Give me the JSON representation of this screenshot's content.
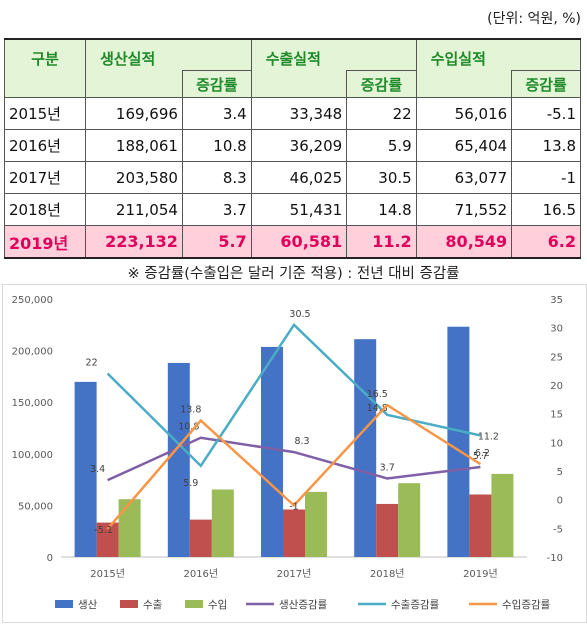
{
  "unit_note": "(단위: 억원, %)",
  "table": {
    "header_group": "구분",
    "headers": [
      "생산실적",
      "수출실적",
      "수입실적"
    ],
    "sub_header": "증감률",
    "rows": [
      {
        "year": "2015년",
        "cells": [
          "169,696",
          "3.4",
          "33,348",
          "22",
          "56,016",
          "-5.1"
        ]
      },
      {
        "year": "2016년",
        "cells": [
          "188,061",
          "10.8",
          "36,209",
          "5.9",
          "65,404",
          "13.8"
        ]
      },
      {
        "year": "2017년",
        "cells": [
          "203,580",
          "8.3",
          "46,025",
          "30.5",
          "63,077",
          "-1"
        ]
      },
      {
        "year": "2018년",
        "cells": [
          "211,054",
          "3.7",
          "51,431",
          "14.8",
          "71,552",
          "16.5"
        ]
      },
      {
        "year": "2019년",
        "cells": [
          "223,132",
          "5.7",
          "60,581",
          "11.2",
          "80,549",
          "6.2"
        ]
      }
    ]
  },
  "footnote": "※ 증감률(수출입은 달러 기준 적용) : 전년 대비 증감률",
  "chart_data": {
    "type": "bar",
    "categories": [
      "2015년",
      "2016년",
      "2017년",
      "2018년",
      "2019년"
    ],
    "series": [
      {
        "name": "생산",
        "type": "bar",
        "axis": "left",
        "color": "#4472c4",
        "values": [
          169696,
          188061,
          203580,
          211054,
          223132
        ]
      },
      {
        "name": "수출",
        "type": "bar",
        "axis": "left",
        "color": "#c0504d",
        "values": [
          33348,
          36209,
          46025,
          51431,
          60581
        ]
      },
      {
        "name": "수입",
        "type": "bar",
        "axis": "left",
        "color": "#9bbb59",
        "values": [
          56016,
          65404,
          63077,
          71552,
          80549
        ]
      },
      {
        "name": "생산증감률",
        "type": "line",
        "axis": "right",
        "color": "#7f5fa8",
        "values": [
          3.4,
          10.8,
          8.3,
          3.7,
          5.7
        ]
      },
      {
        "name": "수출증감률",
        "type": "line",
        "axis": "right",
        "color": "#4bacc6",
        "values": [
          22,
          5.9,
          30.5,
          14.8,
          11.2
        ]
      },
      {
        "name": "수입증감률",
        "type": "line",
        "axis": "right",
        "color": "#f79646",
        "values": [
          -5.1,
          13.8,
          -1,
          16.5,
          6.2
        ]
      }
    ],
    "y_left": {
      "min": 0,
      "max": 250000,
      "step": 50000,
      "ticks": [
        "0",
        "50,000",
        "100,000",
        "150,000",
        "200,000",
        "250,000"
      ]
    },
    "y_right": {
      "min": -10,
      "max": 35,
      "step": 5,
      "ticks": [
        "-10",
        "-5",
        "0",
        "5",
        "10",
        "15",
        "20",
        "25",
        "30",
        "35"
      ]
    },
    "grid": false,
    "legend_position": "bottom"
  }
}
